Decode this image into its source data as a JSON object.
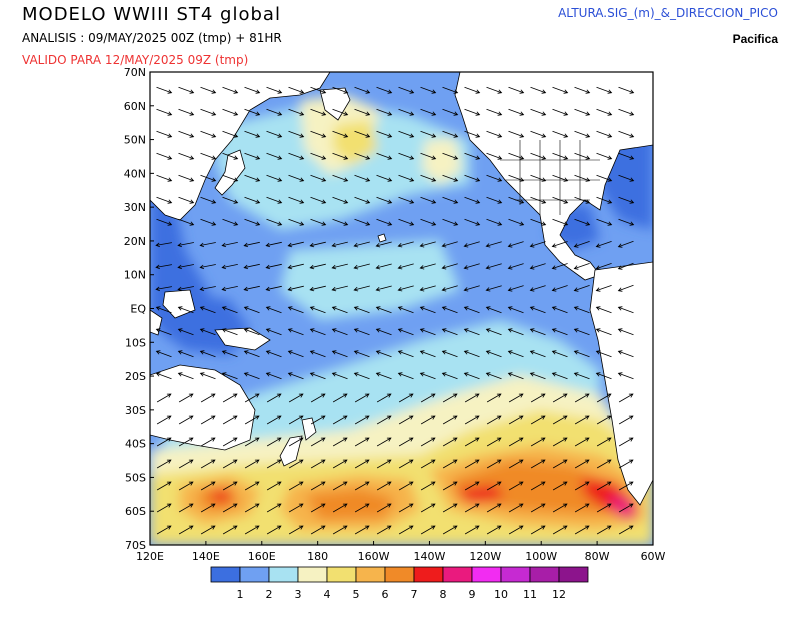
{
  "header": {
    "title": "MODELO WWIII ST4 global",
    "analysis": "ANALISIS : 09/MAY/2025 00Z  (tmp) + 81HR",
    "valid": "VALIDO PARA  12/MAY/2025 09Z  (tmp)",
    "product": "ALTURA.SIG_(m)_&_DIRECCION_PICO",
    "region": "Pacifica"
  },
  "map": {
    "lat_labels": [
      "70N",
      "60N",
      "50N",
      "40N",
      "30N",
      "20N",
      "10N",
      "EQ",
      "10S",
      "20S",
      "30S",
      "40S",
      "50S",
      "60S",
      "70S"
    ],
    "lon_labels": [
      "120E",
      "140E",
      "160E",
      "180",
      "160W",
      "140W",
      "120W",
      "100W",
      "80W",
      "60W"
    ],
    "lat_range": [
      -70,
      70
    ],
    "lon_range_east": [
      120,
      300
    ],
    "land_color": "#ffffff",
    "coast_color": "#000000",
    "arrow_color": "#000000"
  },
  "legend": {
    "colors": [
      "#3c6fe0",
      "#6fa0f2",
      "#a8e2f2",
      "#f6f2c2",
      "#f2e070",
      "#f6b44c",
      "#f08a28",
      "#ee1c1c",
      "#ea1a7e",
      "#f22cf2",
      "#c62ad2",
      "#a81ea8",
      "#8c148c"
    ],
    "labels": [
      "1",
      "2",
      "3",
      "4",
      "5",
      "6",
      "7",
      "8",
      "9",
      "10",
      "11",
      "12"
    ]
  }
}
